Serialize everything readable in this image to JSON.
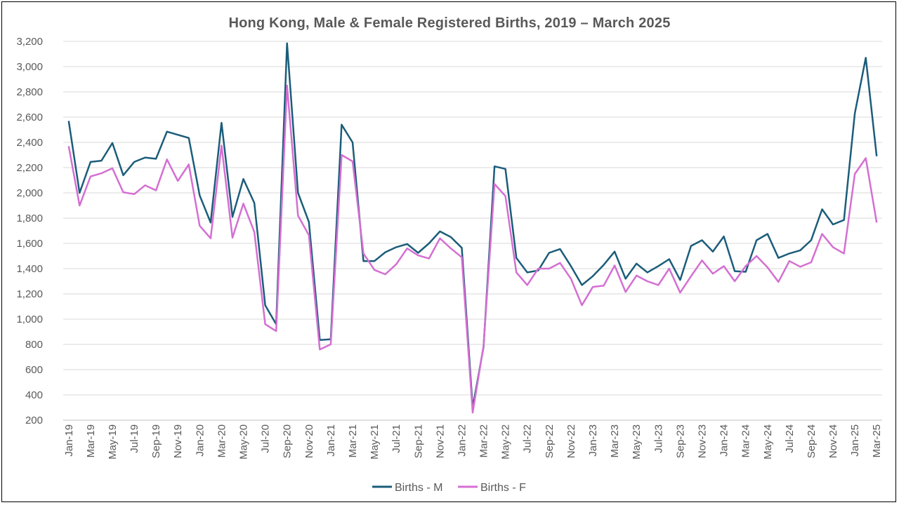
{
  "chart_data": {
    "type": "line",
    "title": "Hong Kong, Male & Female Registered Births, 2019 – March 2025",
    "xlabel": "",
    "ylabel": "",
    "ylim": [
      200,
      3200
    ],
    "yticks": [
      200,
      400,
      600,
      800,
      1000,
      1200,
      1400,
      1600,
      1800,
      2000,
      2200,
      2400,
      2600,
      2800,
      3000,
      3200
    ],
    "ytick_labels": [
      "200",
      "400",
      "600",
      "800",
      "1,000",
      "1,200",
      "1,400",
      "1,600",
      "1,800",
      "2,000",
      "2,200",
      "2,400",
      "2,600",
      "2,800",
      "3,000",
      "3,200"
    ],
    "grid": true,
    "legend_position": "bottom",
    "x": [
      "Jan-19",
      "Feb-19",
      "Mar-19",
      "Apr-19",
      "May-19",
      "Jun-19",
      "Jul-19",
      "Aug-19",
      "Sep-19",
      "Oct-19",
      "Nov-19",
      "Dec-19",
      "Jan-20",
      "Feb-20",
      "Mar-20",
      "Apr-20",
      "May-20",
      "Jun-20",
      "Jul-20",
      "Aug-20",
      "Sep-20",
      "Oct-20",
      "Nov-20",
      "Dec-20",
      "Jan-21",
      "Feb-21",
      "Mar-21",
      "Apr-21",
      "May-21",
      "Jun-21",
      "Jul-21",
      "Aug-21",
      "Sep-21",
      "Oct-21",
      "Nov-21",
      "Dec-21",
      "Jan-22",
      "Feb-22",
      "Mar-22",
      "Apr-22",
      "May-22",
      "Jun-22",
      "Jul-22",
      "Aug-22",
      "Sep-22",
      "Oct-22",
      "Nov-22",
      "Dec-22",
      "Jan-23",
      "Feb-23",
      "Mar-23",
      "Apr-23",
      "May-23",
      "Jun-23",
      "Jul-23",
      "Aug-23",
      "Sep-23",
      "Oct-23",
      "Nov-23",
      "Dec-23",
      "Jan-24",
      "Feb-24",
      "Mar-24",
      "Apr-24",
      "May-24",
      "Jun-24",
      "Jul-24",
      "Aug-24",
      "Sep-24",
      "Oct-24",
      "Nov-24",
      "Dec-24",
      "Jan-25",
      "Feb-25",
      "Mar-25"
    ],
    "series": [
      {
        "name": "Births - M",
        "color": "#1b5d7a",
        "values": [
          2570,
          2000,
          2245,
          2255,
          2395,
          2140,
          2245,
          2280,
          2270,
          2485,
          2460,
          2435,
          1980,
          1765,
          2555,
          1810,
          2110,
          1920,
          1110,
          960,
          3185,
          2000,
          1770,
          835,
          840,
          2540,
          2400,
          1460,
          1460,
          1530,
          1570,
          1595,
          1525,
          1600,
          1695,
          1650,
          1565,
          300,
          780,
          2210,
          2190,
          1485,
          1370,
          1385,
          1525,
          1555,
          1420,
          1270,
          1340,
          1430,
          1535,
          1320,
          1440,
          1370,
          1420,
          1475,
          1310,
          1580,
          1625,
          1535,
          1655,
          1380,
          1375,
          1625,
          1675,
          1485,
          1520,
          1545,
          1625,
          1870,
          1750,
          1785,
          2630,
          3070,
          2290
        ]
      },
      {
        "name": "Births - F",
        "color": "#d46fd2",
        "values": [
          2370,
          1900,
          2130,
          2155,
          2195,
          2005,
          1990,
          2060,
          2020,
          2265,
          2095,
          2225,
          1740,
          1640,
          2375,
          1645,
          1915,
          1690,
          960,
          905,
          2850,
          1820,
          1665,
          760,
          800,
          2300,
          2250,
          1520,
          1390,
          1355,
          1435,
          1560,
          1505,
          1480,
          1640,
          1560,
          1490,
          260,
          790,
          2070,
          1975,
          1370,
          1270,
          1400,
          1400,
          1445,
          1320,
          1110,
          1255,
          1265,
          1425,
          1215,
          1345,
          1300,
          1270,
          1400,
          1210,
          1340,
          1465,
          1360,
          1420,
          1300,
          1420,
          1500,
          1410,
          1295,
          1460,
          1415,
          1450,
          1675,
          1570,
          1520,
          2150,
          2275,
          1765
        ]
      }
    ]
  }
}
